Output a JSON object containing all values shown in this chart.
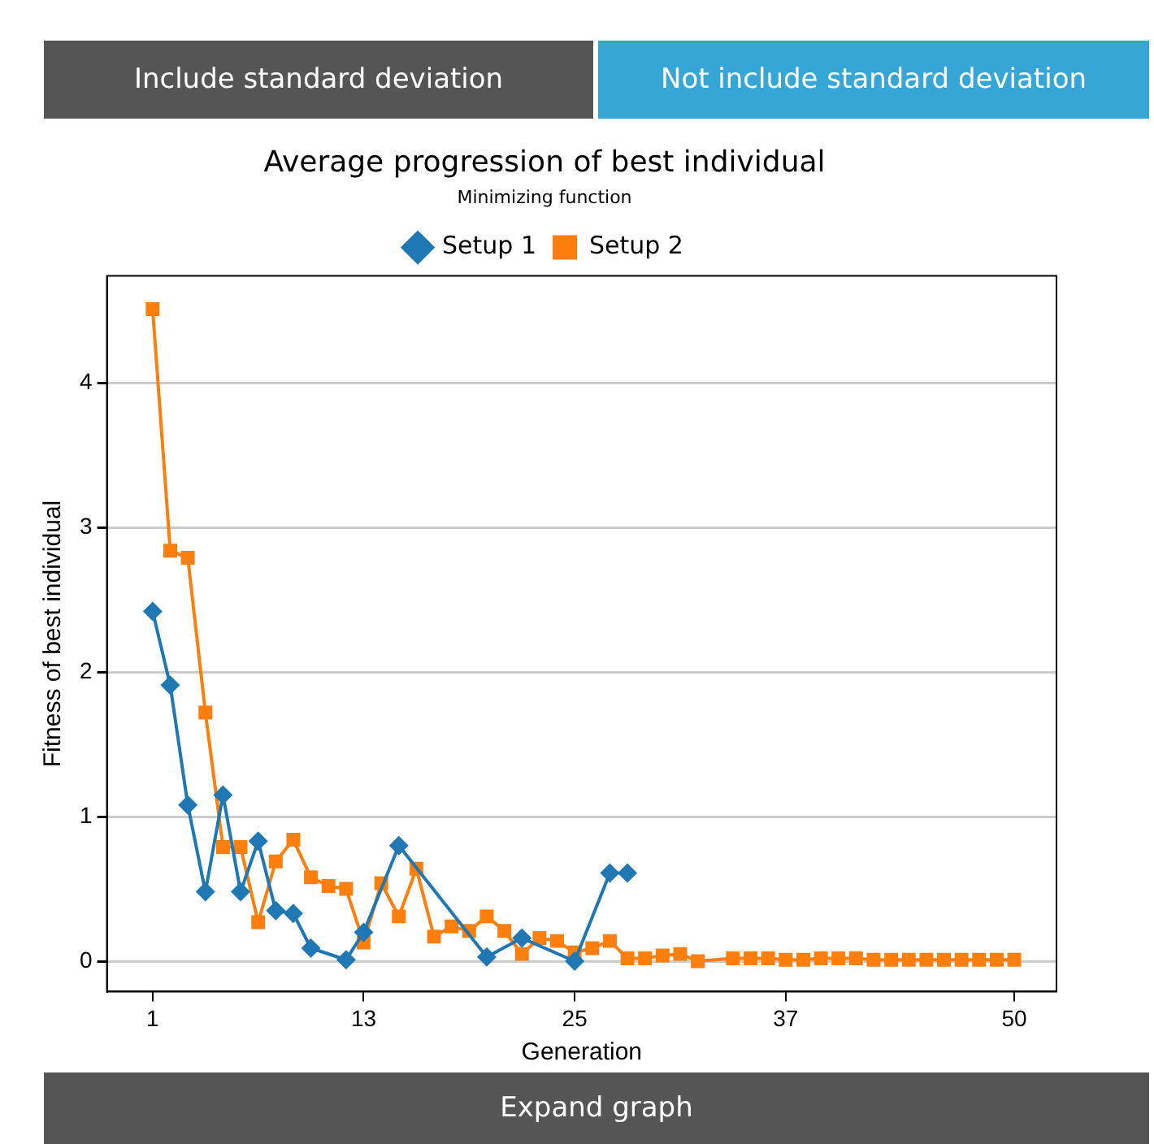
{
  "chart_data": {
    "type": "line",
    "title": "Average progression of best individual",
    "subtitle": "Minimizing function",
    "xlabel": "Generation",
    "ylabel": "Fitness of best individual",
    "annotations": [
      "Include standard deviation",
      "Not include standard deviation",
      "Expand graph"
    ],
    "xlim": [
      -1.6,
      52.4
    ],
    "xticks": [
      1,
      13,
      25,
      37,
      50
    ],
    "ylim": [
      -0.21,
      4.74
    ],
    "yticks": [
      0,
      1,
      2,
      3,
      4
    ],
    "grid": "y",
    "legend": "top",
    "series": [
      {
        "name": "Setup 1",
        "color": "#1f77b4",
        "marker": "diamond",
        "x": [
          1,
          2,
          3,
          4,
          5,
          6,
          7,
          8,
          9,
          10,
          12,
          13,
          15,
          20,
          22,
          25,
          27,
          28
        ],
        "values": [
          2.42,
          1.91,
          1.08,
          0.48,
          1.15,
          0.48,
          0.83,
          0.35,
          0.33,
          0.09,
          0.01,
          0.2,
          0.8,
          0.03,
          0.16,
          0.0,
          0.61,
          0.61
        ]
      },
      {
        "name": "Setup 2",
        "color": "#ff7f0e",
        "marker": "square",
        "x": [
          1,
          2,
          3,
          4,
          5,
          6,
          7,
          8,
          9,
          10,
          11,
          12,
          13,
          14,
          15,
          16,
          17,
          18,
          19,
          20,
          21,
          22,
          23,
          24,
          25,
          26,
          27,
          28,
          29,
          30,
          31,
          32,
          34,
          35,
          36,
          37,
          38,
          39,
          40,
          41,
          42,
          43,
          44,
          45,
          46,
          47,
          48,
          49,
          50
        ],
        "values": [
          4.51,
          2.84,
          2.79,
          1.72,
          0.79,
          0.79,
          0.27,
          0.69,
          0.84,
          0.58,
          0.52,
          0.5,
          0.13,
          0.54,
          0.31,
          0.64,
          0.17,
          0.24,
          0.21,
          0.31,
          0.21,
          0.05,
          0.16,
          0.14,
          0.06,
          0.09,
          0.14,
          0.02,
          0.02,
          0.04,
          0.05,
          0.0,
          0.02,
          0.02,
          0.02,
          0.01,
          0.01,
          0.02,
          0.02,
          0.02,
          0.01,
          0.01,
          0.01,
          0.01,
          0.01,
          0.01,
          0.01,
          0.01,
          0.01
        ]
      }
    ]
  }
}
